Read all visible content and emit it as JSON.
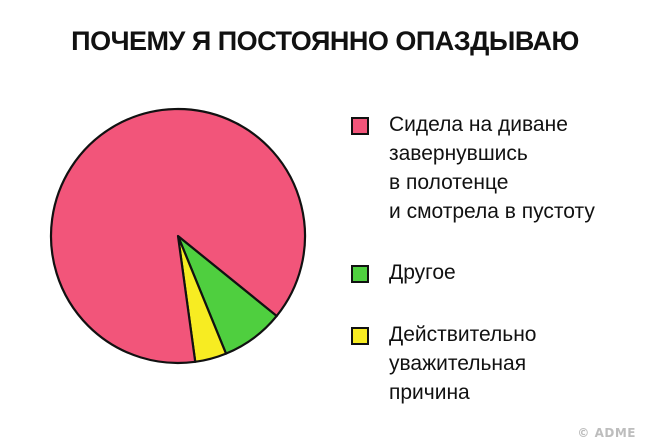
{
  "chart_data": {
    "type": "pie",
    "title": "ПОЧЕМУ Я ПОСТОЯННО ОПАЗДЫВАЮ",
    "slices": [
      {
        "label": "Сидела на диване завернувшись в полотенце и смотрела в пустоту",
        "lines": [
          "Сидела на диване",
          "завернувшись",
          "в полотенце",
          "и смотрела в пустоту"
        ],
        "value": 88,
        "color": "#f2557a"
      },
      {
        "label": "Другое",
        "lines": [
          "Другое"
        ],
        "value": 8,
        "color": "#4fcf3f"
      },
      {
        "label": "Действительно уважительная причина",
        "lines": [
          "Действительно",
          "уважительная",
          "причина"
        ],
        "value": 4,
        "color": "#f7ec22"
      }
    ],
    "legend_position": "right",
    "xlabel": "",
    "ylabel": ""
  },
  "watermark": "© ADME"
}
